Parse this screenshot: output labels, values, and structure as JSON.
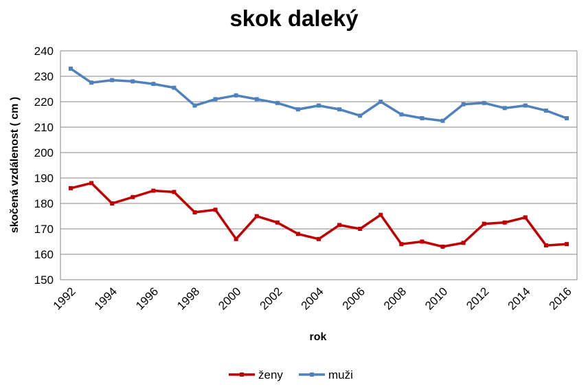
{
  "chart_data": {
    "type": "line",
    "title": "skok daleký",
    "xlabel": "rok",
    "ylabel": "skočená vzdálenost ( cm )",
    "ylim": [
      150,
      240
    ],
    "yticks": [
      150,
      160,
      170,
      180,
      190,
      200,
      210,
      220,
      230,
      240
    ],
    "xlim": [
      1992,
      2016
    ],
    "xticks": [
      1992,
      1994,
      1996,
      1998,
      2000,
      2002,
      2004,
      2006,
      2008,
      2010,
      2012,
      2014,
      2016
    ],
    "x": [
      1992,
      1993,
      1994,
      1995,
      1996,
      1997,
      1998,
      1999,
      2000,
      2001,
      2002,
      2003,
      2004,
      2005,
      2006,
      2007,
      2008,
      2009,
      2010,
      2011,
      2012,
      2013,
      2014,
      2015,
      2016
    ],
    "grid": true,
    "legend_position": "bottom",
    "series": [
      {
        "name": "ženy",
        "color": "#C00000",
        "values": [
          186,
          188,
          180,
          182.5,
          185,
          184.5,
          176.5,
          177.5,
          166,
          175,
          172.5,
          168,
          166,
          171.5,
          170,
          175.5,
          164,
          165,
          163,
          164.5,
          172,
          172.5,
          174.5,
          163.5,
          164
        ]
      },
      {
        "name": "muži",
        "color": "#4F81BD",
        "values": [
          233,
          227.5,
          228.5,
          228,
          227,
          225.5,
          218.5,
          221,
          222.5,
          221,
          219.5,
          217,
          218.5,
          217,
          214.5,
          220,
          215,
          213.5,
          212.5,
          219,
          219.5,
          217.5,
          218.5,
          216.5,
          213.5
        ]
      }
    ]
  }
}
